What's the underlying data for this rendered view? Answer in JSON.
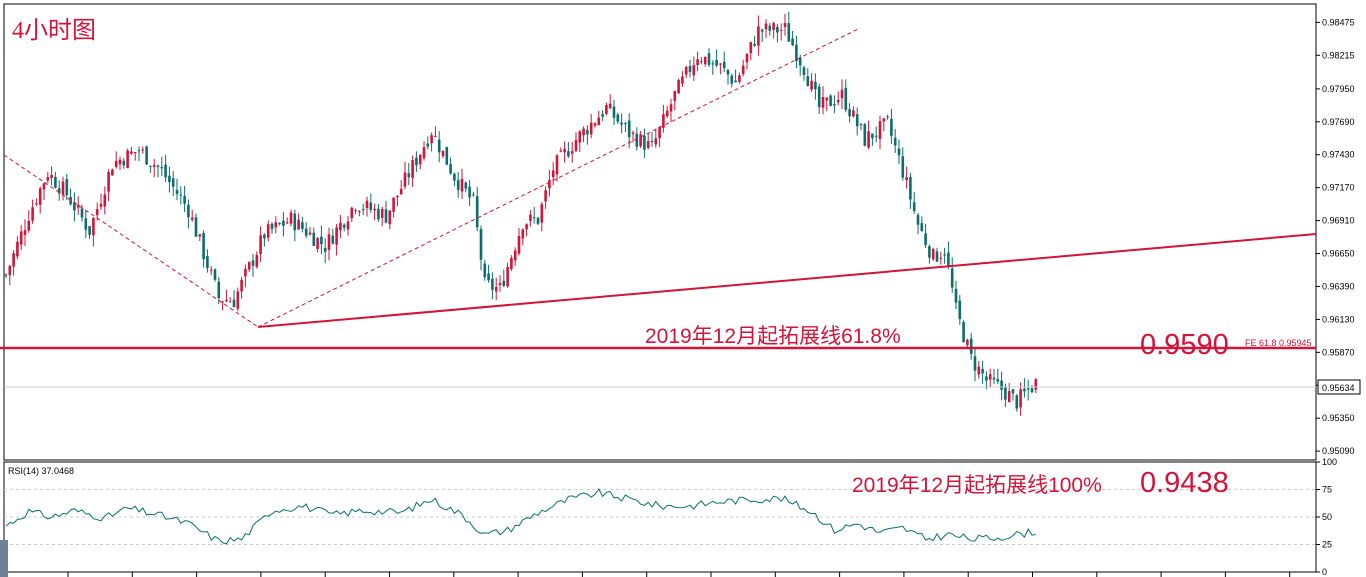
{
  "chart_data": [
    {
      "type": "candlestick",
      "title": "4小时图",
      "y_ticks": [
        0.9509,
        0.9535,
        0.9561,
        0.9587,
        0.9613,
        0.9639,
        0.9665,
        0.9691,
        0.9717,
        0.9743,
        0.9769,
        0.9795,
        0.98215,
        0.98475
      ],
      "ylim": [
        0.9502,
        0.9862
      ],
      "current_price": 0.95634,
      "current_price_label": "0.95634",
      "fe_line_value": 0.95945,
      "fe_label": "FE 61.8  0.95945",
      "annotation_618": "2019年12月起拓展线61.8%",
      "big_level_label": "0.9590",
      "annotation_100": "2019年12月起拓展线100%",
      "level_100_label": "0.9438",
      "anchors": [
        {
          "bar": 0,
          "price": 0.9648
        },
        {
          "bar": 6,
          "price": 0.9696
        },
        {
          "bar": 11,
          "price": 0.9729
        },
        {
          "bar": 16,
          "price": 0.9712
        },
        {
          "bar": 22,
          "price": 0.9683
        },
        {
          "bar": 28,
          "price": 0.9736
        },
        {
          "bar": 35,
          "price": 0.9747
        },
        {
          "bar": 41,
          "price": 0.973
        },
        {
          "bar": 48,
          "price": 0.97
        },
        {
          "bar": 56,
          "price": 0.963
        },
        {
          "bar": 60,
          "price": 0.9628
        },
        {
          "bar": 68,
          "price": 0.968
        },
        {
          "bar": 75,
          "price": 0.9692
        },
        {
          "bar": 84,
          "price": 0.9671
        },
        {
          "bar": 92,
          "price": 0.9705
        },
        {
          "bar": 100,
          "price": 0.9695
        },
        {
          "bar": 106,
          "price": 0.9728
        },
        {
          "bar": 112,
          "price": 0.9762
        },
        {
          "bar": 118,
          "price": 0.9726
        },
        {
          "bar": 123,
          "price": 0.9705
        },
        {
          "bar": 126,
          "price": 0.964
        },
        {
          "bar": 130,
          "price": 0.9637
        },
        {
          "bar": 136,
          "price": 0.969
        },
        {
          "bar": 140,
          "price": 0.9692
        },
        {
          "bar": 144,
          "price": 0.9732
        },
        {
          "bar": 150,
          "price": 0.9755
        },
        {
          "bar": 158,
          "price": 0.978
        },
        {
          "bar": 164,
          "price": 0.976
        },
        {
          "bar": 170,
          "price": 0.9748
        },
        {
          "bar": 176,
          "price": 0.979
        },
        {
          "bar": 182,
          "price": 0.9822
        },
        {
          "bar": 188,
          "price": 0.9812
        },
        {
          "bar": 192,
          "price": 0.98
        },
        {
          "bar": 198,
          "price": 0.9841
        },
        {
          "bar": 205,
          "price": 0.9842
        },
        {
          "bar": 210,
          "price": 0.9812
        },
        {
          "bar": 214,
          "price": 0.978
        },
        {
          "bar": 220,
          "price": 0.979
        },
        {
          "bar": 226,
          "price": 0.9755
        },
        {
          "bar": 232,
          "price": 0.9767
        },
        {
          "bar": 236,
          "price": 0.973
        },
        {
          "bar": 240,
          "price": 0.9688
        },
        {
          "bar": 244,
          "price": 0.9662
        },
        {
          "bar": 247,
          "price": 0.9668
        },
        {
          "bar": 250,
          "price": 0.962
        },
        {
          "bar": 254,
          "price": 0.9582
        },
        {
          "bar": 258,
          "price": 0.9565
        },
        {
          "bar": 262,
          "price": 0.9558
        },
        {
          "bar": 266,
          "price": 0.9548
        },
        {
          "bar": 271,
          "price": 0.9563
        }
      ]
    },
    {
      "type": "line",
      "label": "RSI(14) 37.0468",
      "y_ticks": [
        0,
        25,
        50,
        75,
        100
      ],
      "ylim": [
        0,
        100
      ],
      "anchors": [
        {
          "bar": 0,
          "value": 42
        },
        {
          "bar": 6,
          "value": 55
        },
        {
          "bar": 12,
          "value": 50
        },
        {
          "bar": 18,
          "value": 56
        },
        {
          "bar": 26,
          "value": 49
        },
        {
          "bar": 32,
          "value": 58
        },
        {
          "bar": 40,
          "value": 52
        },
        {
          "bar": 48,
          "value": 44
        },
        {
          "bar": 56,
          "value": 28
        },
        {
          "bar": 62,
          "value": 30
        },
        {
          "bar": 70,
          "value": 56
        },
        {
          "bar": 78,
          "value": 60
        },
        {
          "bar": 86,
          "value": 52
        },
        {
          "bar": 94,
          "value": 56
        },
        {
          "bar": 104,
          "value": 54
        },
        {
          "bar": 112,
          "value": 66
        },
        {
          "bar": 120,
          "value": 52
        },
        {
          "bar": 126,
          "value": 34
        },
        {
          "bar": 132,
          "value": 38
        },
        {
          "bar": 140,
          "value": 54
        },
        {
          "bar": 148,
          "value": 66
        },
        {
          "bar": 156,
          "value": 72
        },
        {
          "bar": 164,
          "value": 66
        },
        {
          "bar": 172,
          "value": 60
        },
        {
          "bar": 180,
          "value": 60
        },
        {
          "bar": 188,
          "value": 64
        },
        {
          "bar": 196,
          "value": 66
        },
        {
          "bar": 204,
          "value": 67
        },
        {
          "bar": 212,
          "value": 55
        },
        {
          "bar": 218,
          "value": 38
        },
        {
          "bar": 224,
          "value": 44
        },
        {
          "bar": 230,
          "value": 36
        },
        {
          "bar": 236,
          "value": 40
        },
        {
          "bar": 242,
          "value": 30
        },
        {
          "bar": 248,
          "value": 34
        },
        {
          "bar": 254,
          "value": 30
        },
        {
          "bar": 260,
          "value": 31
        },
        {
          "bar": 266,
          "value": 34
        },
        {
          "bar": 271,
          "value": 37
        }
      ]
    }
  ]
}
